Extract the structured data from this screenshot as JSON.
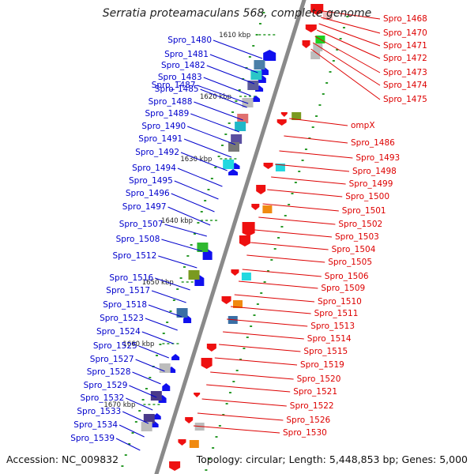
{
  "title": "Serratia proteamaculans 568, complete genome",
  "accession": "Accession: NC_009832",
  "summary": "Topology: circular; Length: 5,448,853 bp; Genes: 5,000",
  "colors": {
    "backbone": "#8a8a8a",
    "right_labels": "#dd0000",
    "left_labels": "#0000cc",
    "forward_arrow": "#1010ee",
    "reverse_arrow": "#ee1010",
    "tick_mark": "#2a9a2a"
  },
  "ticks": [
    "1610 kbp",
    "1620 kbp",
    "1630 kbp",
    "1640 kbp",
    "1650 kbp",
    "1660 kbp",
    "1670 kbp"
  ],
  "right_labels": [
    "Spro_1468",
    "Spro_1470",
    "Spro_1471",
    "Spro_1472",
    "Spro_1473",
    "Spro_1474",
    "Spro_1475",
    "ompX",
    "Spro_1486",
    "Spro_1493",
    "Spro_1498",
    "Spro_1499",
    "Spro_1500",
    "Spro_1501",
    "Spro_1502",
    "Spro_1503",
    "Spro_1504",
    "Spro_1505",
    "Spro_1506",
    "Spro_1509",
    "Spro_1510",
    "Spro_1511",
    "Spro_1513",
    "Spro_1514",
    "Spro_1515",
    "Spro_1519",
    "Spro_1520",
    "Spro_1521",
    "Spro_1522",
    "Spro_1526",
    "Spro_1530"
  ],
  "left_labels": [
    "Spro_1480",
    "Spro_1481",
    "Spro_1482",
    "Spro_1483",
    "Spro_1485",
    "Spro_1487",
    "Spro_1488",
    "Spro_1489",
    "Spro_1490",
    "Spro_1491",
    "Spro_1492",
    "Spro_1494",
    "Spro_1495",
    "Spro_1496",
    "Spro_1497",
    "Spro_1507",
    "Spro_1508",
    "Spro_1512",
    "Spro_1516",
    "Spro_1517",
    "Spro_1518",
    "Spro_1523",
    "Spro_1524",
    "Spro_1525",
    "Spro_1527",
    "Spro_1528",
    "Spro_1529",
    "Spro_1532",
    "Spro_1533",
    "Spro_1534",
    "Spro_1539"
  ]
}
